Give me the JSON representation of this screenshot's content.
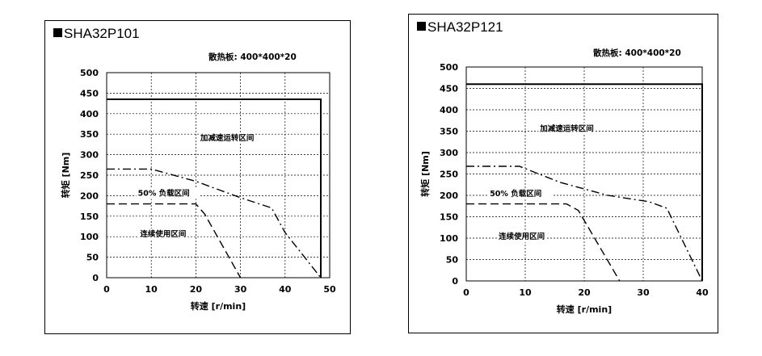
{
  "chart_data": [
    {
      "type": "line",
      "title": "SHA32P101",
      "note": "散热板: 400*400*20",
      "xlabel": "转速 [r/min]",
      "ylabel": "转矩 [Nm]",
      "xlim": [
        0,
        50
      ],
      "ylim": [
        0,
        500
      ],
      "xticks": [
        "0",
        "10",
        "20",
        "30",
        "40",
        "50"
      ],
      "yticks": [
        "0",
        "50",
        "100",
        "150",
        "200",
        "250",
        "300",
        "350",
        "400",
        "450",
        "500"
      ],
      "grid": true,
      "series": [
        {
          "name": "加减速运转区间",
          "style": "solid",
          "x": [
            0,
            48,
            48
          ],
          "y": [
            435,
            435,
            0
          ]
        },
        {
          "name": "50% 负载区间",
          "style": "dash-dot",
          "x": [
            0,
            10,
            20,
            30,
            37,
            40,
            48
          ],
          "y": [
            265,
            265,
            235,
            195,
            170,
            110,
            0
          ]
        },
        {
          "name": "连续使用区间",
          "style": "dashed",
          "x": [
            0,
            20,
            22,
            30
          ],
          "y": [
            180,
            180,
            155,
            0
          ]
        }
      ],
      "annotations": [
        {
          "text": "加减速运转区间",
          "x": 21,
          "y": 335
        },
        {
          "text": "50% 负载区间",
          "x": 7,
          "y": 200
        },
        {
          "text": "连续使用区间",
          "x": 7.5,
          "y": 100
        }
      ]
    },
    {
      "type": "line",
      "title": "SHA32P121",
      "note": "散热板: 400*400*20",
      "xlabel": "转速 [r/min]",
      "ylabel": "转矩 [Nm]",
      "xlim": [
        0,
        40
      ],
      "ylim": [
        0,
        500
      ],
      "xticks": [
        "0",
        "10",
        "20",
        "30",
        "40"
      ],
      "yticks": [
        "0",
        "50",
        "100",
        "150",
        "200",
        "250",
        "300",
        "350",
        "400",
        "450",
        "500"
      ],
      "grid": true,
      "series": [
        {
          "name": "加减速运转区间",
          "style": "solid",
          "x": [
            0,
            40,
            40
          ],
          "y": [
            460,
            460,
            0
          ]
        },
        {
          "name": "50% 负载区间",
          "style": "dash-dot",
          "x": [
            0,
            9,
            16,
            24,
            31,
            34,
            40
          ],
          "y": [
            268,
            268,
            230,
            200,
            185,
            170,
            0
          ]
        },
        {
          "name": "连续使用区间",
          "style": "dashed",
          "x": [
            0,
            17,
            19,
            26
          ],
          "y": [
            180,
            180,
            165,
            0
          ]
        }
      ],
      "annotations": [
        {
          "text": "加减速运转区间",
          "x": 12.5,
          "y": 350
        },
        {
          "text": "50% 负载区间",
          "x": 4,
          "y": 198
        },
        {
          "text": "连续使用区间",
          "x": 5.5,
          "y": 98
        }
      ]
    }
  ]
}
